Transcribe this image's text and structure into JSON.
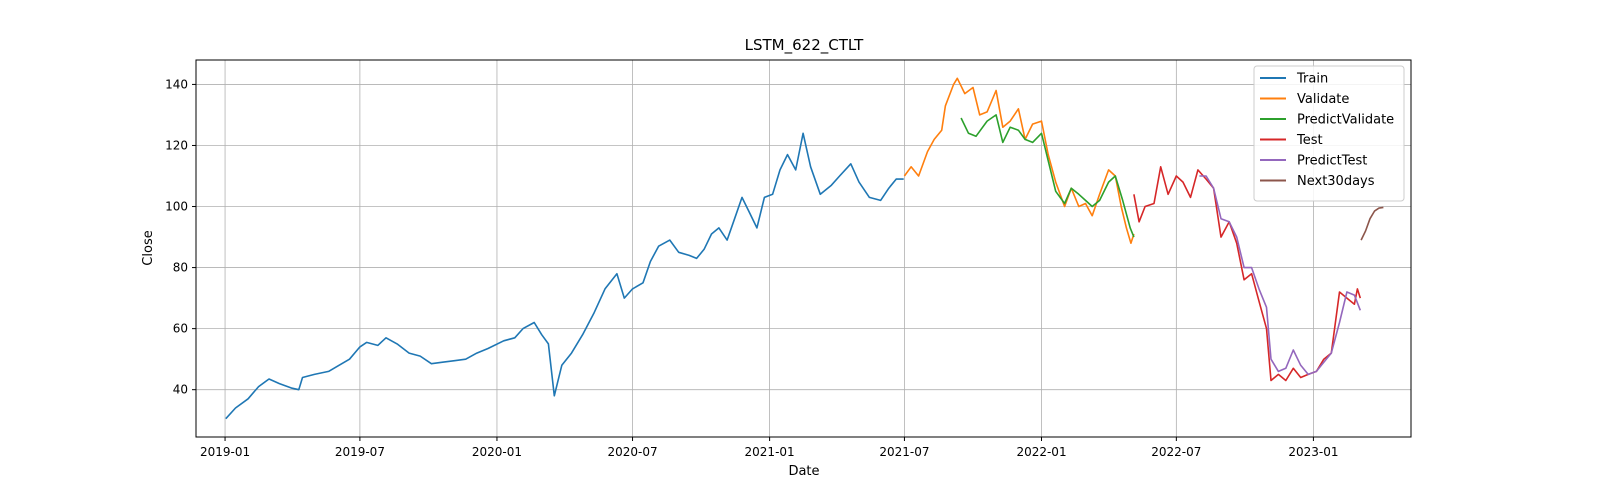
{
  "chart_data": {
    "type": "line",
    "title": "LSTM_622_CTLT",
    "xlabel": "Date",
    "ylabel": "Close",
    "xlim": [
      "2018-11-23",
      "2023-05-12"
    ],
    "ylim": [
      24.5,
      148
    ],
    "x_ticks": [
      "2019-01",
      "2019-07",
      "2020-01",
      "2020-07",
      "2021-01",
      "2021-07",
      "2022-01",
      "2022-07",
      "2023-01"
    ],
    "y_ticks": [
      40,
      60,
      80,
      100,
      120,
      140
    ],
    "grid": true,
    "legend_position": "top-right",
    "series": [
      {
        "name": "Train",
        "color": "#1f77b4",
        "points": [
          [
            "2019-01-02",
            30.5
          ],
          [
            "2019-01-15",
            34
          ],
          [
            "2019-02-01",
            37
          ],
          [
            "2019-02-15",
            41
          ],
          [
            "2019-03-01",
            43.5
          ],
          [
            "2019-03-15",
            42
          ],
          [
            "2019-04-01",
            40.5
          ],
          [
            "2019-04-10",
            40
          ],
          [
            "2019-04-15",
            44
          ],
          [
            "2019-05-01",
            45
          ],
          [
            "2019-05-20",
            46
          ],
          [
            "2019-06-03",
            48
          ],
          [
            "2019-06-17",
            50
          ],
          [
            "2019-07-01",
            54
          ],
          [
            "2019-07-10",
            55.5
          ],
          [
            "2019-07-25",
            54.5
          ],
          [
            "2019-08-05",
            57
          ],
          [
            "2019-08-20",
            55
          ],
          [
            "2019-09-05",
            52
          ],
          [
            "2019-09-20",
            51
          ],
          [
            "2019-10-05",
            48.5
          ],
          [
            "2019-10-20",
            49
          ],
          [
            "2019-11-05",
            49.5
          ],
          [
            "2019-11-20",
            50
          ],
          [
            "2019-12-05",
            52
          ],
          [
            "2019-12-20",
            53.5
          ],
          [
            "2020-01-10",
            56
          ],
          [
            "2020-01-25",
            57
          ],
          [
            "2020-02-05",
            60
          ],
          [
            "2020-02-20",
            62
          ],
          [
            "2020-03-01",
            58
          ],
          [
            "2020-03-10",
            55
          ],
          [
            "2020-03-18",
            38
          ],
          [
            "2020-03-28",
            48
          ],
          [
            "2020-04-10",
            52
          ],
          [
            "2020-04-25",
            58
          ],
          [
            "2020-05-10",
            65
          ],
          [
            "2020-05-25",
            73
          ],
          [
            "2020-06-10",
            78
          ],
          [
            "2020-06-20",
            70
          ],
          [
            "2020-07-01",
            73
          ],
          [
            "2020-07-15",
            75
          ],
          [
            "2020-07-25",
            82
          ],
          [
            "2020-08-05",
            87
          ],
          [
            "2020-08-20",
            89
          ],
          [
            "2020-09-01",
            85
          ],
          [
            "2020-09-15",
            84
          ],
          [
            "2020-09-25",
            83
          ],
          [
            "2020-10-05",
            86
          ],
          [
            "2020-10-15",
            91
          ],
          [
            "2020-10-25",
            93
          ],
          [
            "2020-11-05",
            89
          ],
          [
            "2020-11-15",
            96
          ],
          [
            "2020-11-25",
            103
          ],
          [
            "2020-12-05",
            98
          ],
          [
            "2020-12-15",
            93
          ],
          [
            "2020-12-25",
            103
          ],
          [
            "2021-01-05",
            104
          ],
          [
            "2021-01-15",
            112
          ],
          [
            "2021-01-25",
            117
          ],
          [
            "2021-02-05",
            112
          ],
          [
            "2021-02-15",
            124
          ],
          [
            "2021-02-25",
            113
          ],
          [
            "2021-03-10",
            104
          ],
          [
            "2021-03-25",
            107
          ],
          [
            "2021-04-05",
            110
          ],
          [
            "2021-04-20",
            114
          ],
          [
            "2021-05-01",
            108
          ],
          [
            "2021-05-15",
            103
          ],
          [
            "2021-05-30",
            102
          ],
          [
            "2021-06-10",
            106
          ],
          [
            "2021-06-20",
            109
          ],
          [
            "2021-06-30",
            109
          ]
        ]
      },
      {
        "name": "Validate",
        "color": "#ff7f0e",
        "points": [
          [
            "2021-07-01",
            110
          ],
          [
            "2021-07-10",
            113
          ],
          [
            "2021-07-20",
            110
          ],
          [
            "2021-08-01",
            118
          ],
          [
            "2021-08-10",
            122
          ],
          [
            "2021-08-20",
            125
          ],
          [
            "2021-08-25",
            133
          ],
          [
            "2021-09-05",
            140
          ],
          [
            "2021-09-10",
            142
          ],
          [
            "2021-09-20",
            137
          ],
          [
            "2021-10-01",
            139
          ],
          [
            "2021-10-10",
            130
          ],
          [
            "2021-10-20",
            131
          ],
          [
            "2021-11-01",
            138
          ],
          [
            "2021-11-10",
            126
          ],
          [
            "2021-11-20",
            128
          ],
          [
            "2021-12-01",
            132
          ],
          [
            "2021-12-10",
            122
          ],
          [
            "2021-12-20",
            127
          ],
          [
            "2022-01-01",
            128
          ],
          [
            "2022-01-10",
            117
          ],
          [
            "2022-01-20",
            108
          ],
          [
            "2022-02-01",
            100
          ],
          [
            "2022-02-10",
            106
          ],
          [
            "2022-02-20",
            100
          ],
          [
            "2022-03-01",
            101
          ],
          [
            "2022-03-10",
            97
          ],
          [
            "2022-03-20",
            104
          ],
          [
            "2022-04-01",
            112
          ],
          [
            "2022-04-10",
            110
          ],
          [
            "2022-04-18",
            100
          ],
          [
            "2022-04-25",
            93
          ],
          [
            "2022-05-01",
            88
          ],
          [
            "2022-05-05",
            91
          ]
        ]
      },
      {
        "name": "PredictValidate",
        "color": "#2ca02c",
        "points": [
          [
            "2021-09-15",
            129
          ],
          [
            "2021-09-25",
            124
          ],
          [
            "2021-10-05",
            123
          ],
          [
            "2021-10-20",
            128
          ],
          [
            "2021-11-01",
            130
          ],
          [
            "2021-11-10",
            121
          ],
          [
            "2021-11-20",
            126
          ],
          [
            "2021-12-01",
            125
          ],
          [
            "2021-12-10",
            122
          ],
          [
            "2021-12-20",
            121
          ],
          [
            "2022-01-01",
            124
          ],
          [
            "2022-01-10",
            115
          ],
          [
            "2022-01-20",
            105
          ],
          [
            "2022-02-01",
            101
          ],
          [
            "2022-02-10",
            106
          ],
          [
            "2022-02-20",
            104
          ],
          [
            "2022-03-01",
            102
          ],
          [
            "2022-03-10",
            100
          ],
          [
            "2022-03-20",
            102
          ],
          [
            "2022-04-01",
            108
          ],
          [
            "2022-04-10",
            110
          ],
          [
            "2022-04-20",
            102
          ],
          [
            "2022-04-30",
            93
          ],
          [
            "2022-05-05",
            90
          ]
        ]
      },
      {
        "name": "Test",
        "color": "#d62728",
        "points": [
          [
            "2022-05-05",
            104
          ],
          [
            "2022-05-12",
            95
          ],
          [
            "2022-05-20",
            100
          ],
          [
            "2022-06-01",
            101
          ],
          [
            "2022-06-10",
            113
          ],
          [
            "2022-06-20",
            104
          ],
          [
            "2022-07-01",
            110
          ],
          [
            "2022-07-10",
            108
          ],
          [
            "2022-07-20",
            103
          ],
          [
            "2022-07-30",
            112
          ],
          [
            "2022-08-10",
            109
          ],
          [
            "2022-08-20",
            106
          ],
          [
            "2022-08-30",
            90
          ],
          [
            "2022-09-10",
            95
          ],
          [
            "2022-09-20",
            88
          ],
          [
            "2022-09-30",
            76
          ],
          [
            "2022-10-10",
            78
          ],
          [
            "2022-10-20",
            69
          ],
          [
            "2022-10-30",
            60
          ],
          [
            "2022-11-05",
            43
          ],
          [
            "2022-11-15",
            45
          ],
          [
            "2022-11-25",
            43
          ],
          [
            "2022-12-05",
            47
          ],
          [
            "2022-12-15",
            44
          ],
          [
            "2022-12-25",
            45
          ],
          [
            "2023-01-05",
            46
          ],
          [
            "2023-01-15",
            50
          ],
          [
            "2023-01-25",
            52
          ],
          [
            "2023-02-05",
            72
          ],
          [
            "2023-02-15",
            70
          ],
          [
            "2023-02-25",
            68
          ],
          [
            "2023-03-01",
            73
          ],
          [
            "2023-03-05",
            70
          ]
        ]
      },
      {
        "name": "PredictTest",
        "color": "#9467bd",
        "points": [
          [
            "2022-08-01",
            110
          ],
          [
            "2022-08-10",
            110
          ],
          [
            "2022-08-20",
            106
          ],
          [
            "2022-08-30",
            96
          ],
          [
            "2022-09-10",
            95
          ],
          [
            "2022-09-20",
            90
          ],
          [
            "2022-09-30",
            80
          ],
          [
            "2022-10-10",
            80
          ],
          [
            "2022-10-20",
            73
          ],
          [
            "2022-10-30",
            67
          ],
          [
            "2022-11-05",
            50
          ],
          [
            "2022-11-15",
            46
          ],
          [
            "2022-11-25",
            47
          ],
          [
            "2022-12-05",
            53
          ],
          [
            "2022-12-15",
            48
          ],
          [
            "2022-12-25",
            45
          ],
          [
            "2023-01-05",
            46
          ],
          [
            "2023-01-15",
            49
          ],
          [
            "2023-01-25",
            52
          ],
          [
            "2023-02-05",
            62
          ],
          [
            "2023-02-15",
            72
          ],
          [
            "2023-02-25",
            71
          ],
          [
            "2023-03-05",
            66
          ]
        ]
      },
      {
        "name": "Next30days",
        "color": "#8c564b",
        "points": [
          [
            "2023-03-06",
            89
          ],
          [
            "2023-03-12",
            92
          ],
          [
            "2023-03-18",
            96
          ],
          [
            "2023-03-24",
            98.5
          ],
          [
            "2023-03-30",
            99.5
          ],
          [
            "2023-04-05",
            99.7
          ]
        ]
      }
    ]
  }
}
